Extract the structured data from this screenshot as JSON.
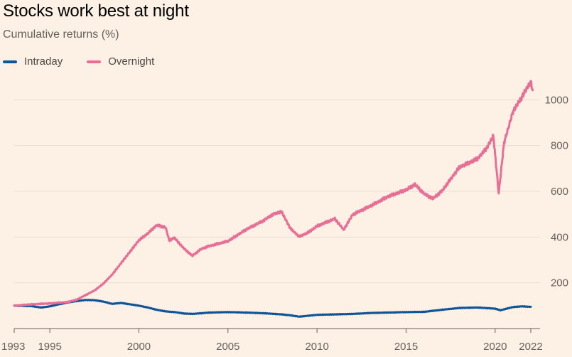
{
  "title": "Stocks work best at night",
  "subtitle": "Cumulative returns (%)",
  "colors": {
    "background": "#fdf0e4",
    "intraday": "#0f5499",
    "overnight": "#e76f96",
    "grid": "#e9dccf",
    "axis": "#66605c"
  },
  "chart_data": {
    "type": "line",
    "title": "Stocks work best at night",
    "subtitle": "Cumulative returns (%)",
    "xlabel": "",
    "ylabel": "",
    "x_ticks": [
      1993,
      1995,
      2000,
      2005,
      2010,
      2015,
      2020,
      2022
    ],
    "y_ticks": [
      200,
      400,
      600,
      800,
      1000
    ],
    "xlim": [
      1993,
      2022.2
    ],
    "ylim": [
      0,
      1110
    ],
    "grid": true,
    "legend_position": "top-left",
    "series": [
      {
        "name": "Intraday",
        "color": "#0f5499",
        "points": [
          [
            1993.0,
            100
          ],
          [
            1994.0,
            98
          ],
          [
            1994.5,
            92
          ],
          [
            1995.0,
            97
          ],
          [
            1995.5,
            106
          ],
          [
            1996.0,
            114
          ],
          [
            1996.5,
            120
          ],
          [
            1997.0,
            125
          ],
          [
            1997.5,
            124
          ],
          [
            1998.0,
            118
          ],
          [
            1998.5,
            108
          ],
          [
            1999.0,
            112
          ],
          [
            1999.5,
            106
          ],
          [
            2000.0,
            100
          ],
          [
            2000.5,
            92
          ],
          [
            2001.0,
            82
          ],
          [
            2001.5,
            75
          ],
          [
            2002.0,
            72
          ],
          [
            2002.5,
            66
          ],
          [
            2003.0,
            64
          ],
          [
            2004.0,
            70
          ],
          [
            2005.0,
            72
          ],
          [
            2006.0,
            70
          ],
          [
            2007.0,
            67
          ],
          [
            2008.0,
            62
          ],
          [
            2008.5,
            58
          ],
          [
            2009.0,
            52
          ],
          [
            2010.0,
            60
          ],
          [
            2011.0,
            62
          ],
          [
            2012.0,
            64
          ],
          [
            2013.0,
            68
          ],
          [
            2014.0,
            70
          ],
          [
            2015.0,
            72
          ],
          [
            2016.0,
            73
          ],
          [
            2017.0,
            82
          ],
          [
            2018.0,
            90
          ],
          [
            2019.0,
            92
          ],
          [
            2020.0,
            87
          ],
          [
            2020.3,
            80
          ],
          [
            2021.0,
            94
          ],
          [
            2021.5,
            97
          ],
          [
            2022.0,
            95
          ]
        ]
      },
      {
        "name": "Overnight",
        "color": "#e76f96",
        "points": [
          [
            1993.0,
            100
          ],
          [
            1994.0,
            106
          ],
          [
            1995.0,
            110
          ],
          [
            1996.0,
            116
          ],
          [
            1996.5,
            126
          ],
          [
            1997.0,
            146
          ],
          [
            1997.5,
            166
          ],
          [
            1998.0,
            196
          ],
          [
            1998.5,
            236
          ],
          [
            1999.0,
            286
          ],
          [
            1999.5,
            336
          ],
          [
            2000.0,
            386
          ],
          [
            2000.5,
            416
          ],
          [
            2001.0,
            452
          ],
          [
            2001.5,
            442
          ],
          [
            2001.7,
            386
          ],
          [
            2002.0,
            396
          ],
          [
            2002.5,
            352
          ],
          [
            2003.0,
            318
          ],
          [
            2003.5,
            348
          ],
          [
            2004.0,
            362
          ],
          [
            2005.0,
            382
          ],
          [
            2006.0,
            432
          ],
          [
            2007.0,
            472
          ],
          [
            2007.5,
            498
          ],
          [
            2008.0,
            512
          ],
          [
            2008.5,
            438
          ],
          [
            2009.0,
            402
          ],
          [
            2009.5,
            420
          ],
          [
            2010.0,
            448
          ],
          [
            2011.0,
            480
          ],
          [
            2011.5,
            432
          ],
          [
            2012.0,
            498
          ],
          [
            2013.0,
            536
          ],
          [
            2014.0,
            578
          ],
          [
            2015.0,
            606
          ],
          [
            2015.5,
            630
          ],
          [
            2016.0,
            590
          ],
          [
            2016.5,
            568
          ],
          [
            2017.0,
            600
          ],
          [
            2018.0,
            706
          ],
          [
            2019.0,
            742
          ],
          [
            2019.5,
            786
          ],
          [
            2019.9,
            842
          ],
          [
            2020.2,
            592
          ],
          [
            2020.5,
            812
          ],
          [
            2021.0,
            948
          ],
          [
            2021.5,
            1012
          ],
          [
            2022.0,
            1080
          ],
          [
            2022.1,
            1042
          ]
        ]
      }
    ]
  }
}
